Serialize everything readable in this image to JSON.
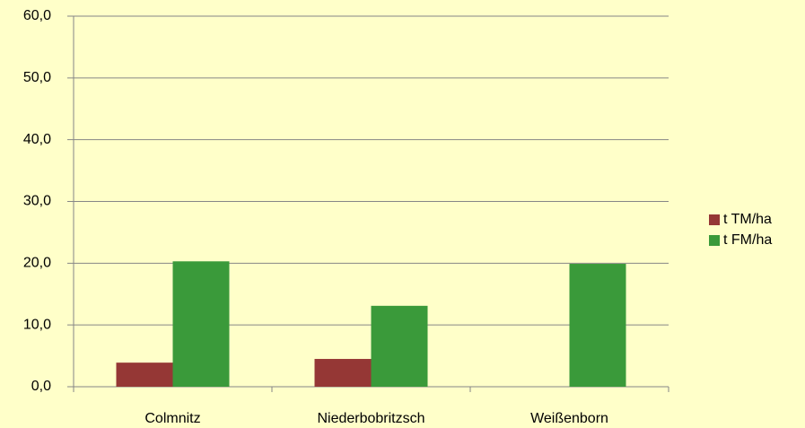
{
  "chart_data": {
    "type": "bar",
    "categories": [
      "Colmnitz",
      "Niederbobritzsch",
      "Weißenborn"
    ],
    "series": [
      {
        "name": "t TM/ha",
        "color": "#953735",
        "values": [
          3.9,
          4.5,
          null
        ]
      },
      {
        "name": "t FM/ha",
        "color": "#3a9a3a",
        "values": [
          20.3,
          13.1,
          19.9
        ]
      }
    ],
    "ylim": [
      0,
      60
    ],
    "yticks": [
      {
        "value": 0,
        "label": "0,0"
      },
      {
        "value": 10,
        "label": "10,0"
      },
      {
        "value": 20,
        "label": "20,0"
      },
      {
        "value": 30,
        "label": "30,0"
      },
      {
        "value": 40,
        "label": "40,0"
      },
      {
        "value": 50,
        "label": "50,0"
      },
      {
        "value": 60,
        "label": "60,0"
      }
    ],
    "grid": true,
    "legend": "right"
  }
}
